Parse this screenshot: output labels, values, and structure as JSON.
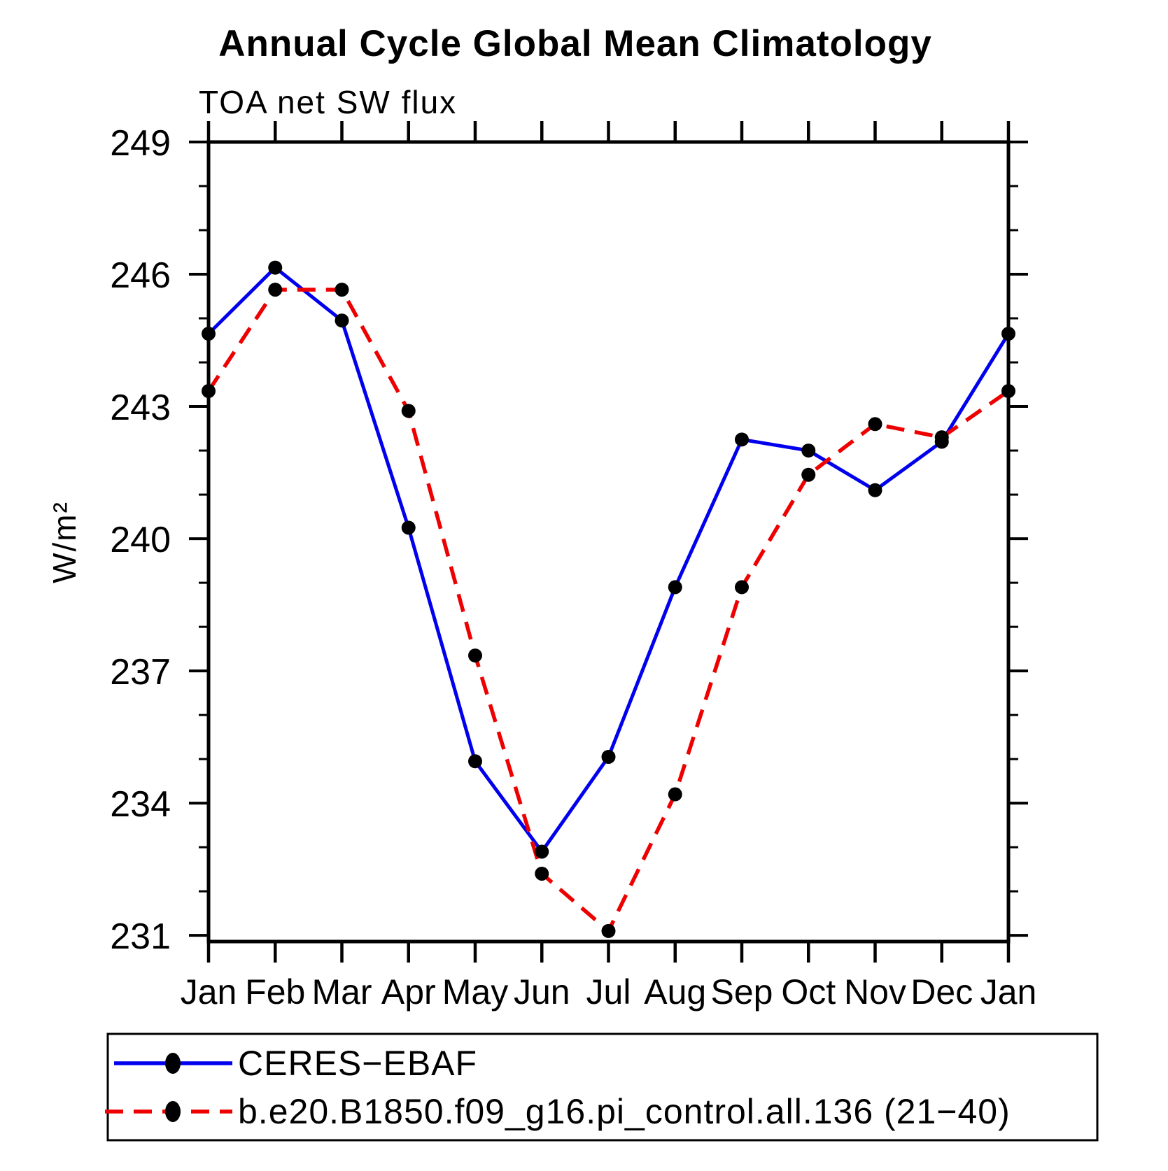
{
  "title": "Annual Cycle Global Mean Climatology",
  "subtitle": "TOA net SW flux",
  "ylabel": "W/m²",
  "legend": {
    "items": [
      {
        "label": "CERES−EBAF",
        "color": "#0000ee",
        "style": "solid"
      },
      {
        "label": "b.e20.B1850.f09_g16.pi_control.all.136 (21−40)",
        "color": "#ee0000",
        "style": "dashed"
      }
    ]
  },
  "chart_data": {
    "type": "line",
    "title": "Annual Cycle Global Mean Climatology",
    "subtitle": "TOA net SW flux",
    "ylabel": "W/m²",
    "xlabel": "",
    "categories": [
      "Jan",
      "Feb",
      "Mar",
      "Apr",
      "May",
      "Jun",
      "Jul",
      "Aug",
      "Sep",
      "Oct",
      "Nov",
      "Dec",
      "Jan"
    ],
    "series": [
      {
        "name": "CERES−EBAF",
        "color": "#0000ee",
        "line_style": "solid",
        "marker": "filled-black-circle",
        "values": [
          244.65,
          246.15,
          244.95,
          240.25,
          234.95,
          232.9,
          235.05,
          238.9,
          242.25,
          242.0,
          241.1,
          242.2,
          244.65
        ]
      },
      {
        "name": "b.e20.B1850.f09_g16.pi_control.all.136 (21−40)",
        "color": "#ee0000",
        "line_style": "dashed",
        "marker": "filled-black-circle",
        "values": [
          243.35,
          245.65,
          245.65,
          242.9,
          237.35,
          232.4,
          231.1,
          234.2,
          238.9,
          241.45,
          242.6,
          242.3,
          243.35
        ]
      }
    ],
    "ylim": [
      230.86,
      249
    ],
    "yticks": [
      231,
      234,
      237,
      240,
      243,
      246,
      249
    ],
    "ytick_minor_interval": 1,
    "grid": false,
    "legend_position": "boxed-below-plot"
  }
}
